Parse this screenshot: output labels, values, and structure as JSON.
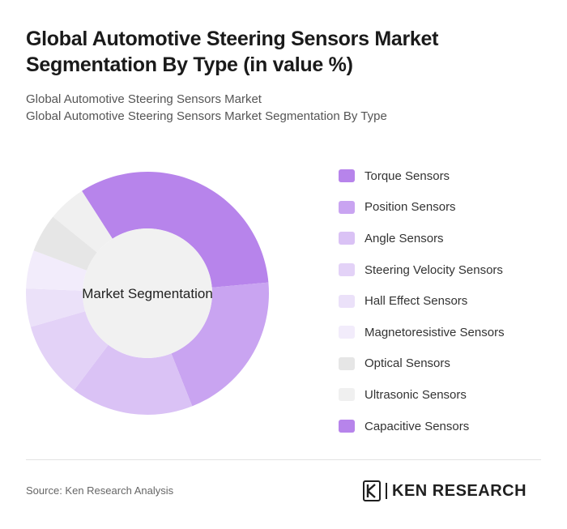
{
  "header": {
    "title": "Global Automotive Steering Sensors Market Segmentation By Type (in value %)",
    "subtitle_line1": "Global Automotive Steering Sensors Market",
    "subtitle_line2": "Global Automotive Steering Sensors Market Segmentation By Type"
  },
  "chart_data": {
    "type": "pie",
    "variant": "donut",
    "center_label": "Market Segmentation",
    "categories": [
      "Torque Sensors",
      "Position Sensors",
      "Angle Sensors",
      "Steering Velocity Sensors",
      "Hall Effect Sensors",
      "Magnetoresistive Sensors",
      "Optical Sensors",
      "Ultrasonic Sensors",
      "Capacitive Sensors"
    ],
    "values": [
      32,
      20,
      16,
      10,
      5,
      5,
      5,
      5,
      0
    ],
    "colors": [
      "#b784eb",
      "#c9a4f1",
      "#dac2f5",
      "#e3d2f7",
      "#ebe1f9",
      "#f2ecfb",
      "#e6e6e6",
      "#f0f0f0",
      "#b784eb"
    ],
    "legend_position": "right"
  },
  "footer": {
    "source": "Source: Ken Research Analysis",
    "logo_text": "KEN RESEARCH"
  }
}
